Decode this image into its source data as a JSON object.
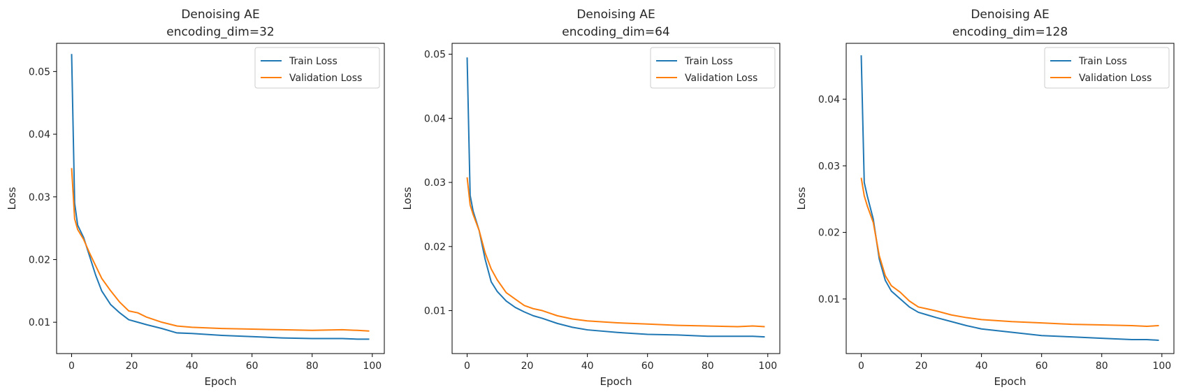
{
  "chart_data": [
    {
      "type": "line",
      "title": "Denoising AE",
      "subtitle": "encoding_dim=32",
      "xlabel": "Epoch",
      "ylabel": "Loss",
      "xlim": [
        -5,
        104
      ],
      "ylim": [
        0.005,
        0.0545
      ],
      "xticks": [
        0,
        20,
        40,
        60,
        80,
        100
      ],
      "xtick_labels": [
        "0",
        "20",
        "40",
        "60",
        "80",
        "100"
      ],
      "yticks": [
        0.01,
        0.02,
        0.03,
        0.04,
        0.05
      ],
      "ytick_labels": [
        "0.01",
        "0.02",
        "0.03",
        "0.04",
        "0.05"
      ],
      "grid": false,
      "legend_position": "top-right",
      "series": [
        {
          "name": "Train Loss",
          "color": "#1f77b4",
          "points": [
            [
              0,
              0.0528
            ],
            [
              1,
              0.029
            ],
            [
              2,
              0.0255
            ],
            [
              4,
              0.0235
            ],
            [
              6,
              0.0205
            ],
            [
              8,
              0.0175
            ],
            [
              10,
              0.015
            ],
            [
              13,
              0.0128
            ],
            [
              16,
              0.0115
            ],
            [
              19,
              0.0104
            ],
            [
              22,
              0.01
            ],
            [
              25,
              0.0096
            ],
            [
              30,
              0.009
            ],
            [
              35,
              0.0083
            ],
            [
              40,
              0.0082
            ],
            [
              50,
              0.0079
            ],
            [
              60,
              0.0077
            ],
            [
              70,
              0.0075
            ],
            [
              80,
              0.0074
            ],
            [
              90,
              0.0074
            ],
            [
              95,
              0.0073
            ],
            [
              99,
              0.0073
            ]
          ]
        },
        {
          "name": "Validation Loss",
          "color": "#ff7f0e",
          "points": [
            [
              0,
              0.0346
            ],
            [
              1,
              0.0265
            ],
            [
              2,
              0.0248
            ],
            [
              4,
              0.0232
            ],
            [
              6,
              0.021
            ],
            [
              8,
              0.019
            ],
            [
              10,
              0.017
            ],
            [
              13,
              0.015
            ],
            [
              16,
              0.0132
            ],
            [
              19,
              0.0118
            ],
            [
              22,
              0.0115
            ],
            [
              25,
              0.0108
            ],
            [
              30,
              0.01
            ],
            [
              35,
              0.0094
            ],
            [
              40,
              0.0092
            ],
            [
              50,
              0.009
            ],
            [
              60,
              0.0089
            ],
            [
              70,
              0.0088
            ],
            [
              80,
              0.0087
            ],
            [
              90,
              0.0088
            ],
            [
              95,
              0.0087
            ],
            [
              99,
              0.0086
            ]
          ]
        }
      ]
    },
    {
      "type": "line",
      "title": "Denoising AE",
      "subtitle": "encoding_dim=64",
      "xlabel": "Epoch",
      "ylabel": "Loss",
      "xlim": [
        -5,
        104
      ],
      "ylim": [
        0.0033,
        0.0517
      ],
      "xticks": [
        0,
        20,
        40,
        60,
        80,
        100
      ],
      "xtick_labels": [
        "0",
        "20",
        "40",
        "60",
        "80",
        "100"
      ],
      "yticks": [
        0.01,
        0.02,
        0.03,
        0.04,
        0.05
      ],
      "ytick_labels": [
        "0.01",
        "0.02",
        "0.03",
        "0.04",
        "0.05"
      ],
      "grid": false,
      "legend_position": "top-right",
      "series": [
        {
          "name": "Train Loss",
          "color": "#1f77b4",
          "points": [
            [
              0,
              0.0495
            ],
            [
              1,
              0.028
            ],
            [
              2,
              0.0255
            ],
            [
              4,
              0.0225
            ],
            [
              6,
              0.018
            ],
            [
              8,
              0.0145
            ],
            [
              10,
              0.013
            ],
            [
              13,
              0.0115
            ],
            [
              16,
              0.0105
            ],
            [
              19,
              0.0098
            ],
            [
              22,
              0.0092
            ],
            [
              25,
              0.0088
            ],
            [
              30,
              0.008
            ],
            [
              35,
              0.0074
            ],
            [
              40,
              0.007
            ],
            [
              50,
              0.0066
            ],
            [
              60,
              0.0063
            ],
            [
              70,
              0.0062
            ],
            [
              80,
              0.006
            ],
            [
              90,
              0.006
            ],
            [
              95,
              0.006
            ],
            [
              99,
              0.0059
            ]
          ]
        },
        {
          "name": "Validation Loss",
          "color": "#ff7f0e",
          "points": [
            [
              0,
              0.0308
            ],
            [
              1,
              0.0265
            ],
            [
              2,
              0.025
            ],
            [
              4,
              0.0225
            ],
            [
              6,
              0.019
            ],
            [
              8,
              0.0165
            ],
            [
              10,
              0.0148
            ],
            [
              13,
              0.0128
            ],
            [
              16,
              0.0118
            ],
            [
              19,
              0.0108
            ],
            [
              22,
              0.0103
            ],
            [
              25,
              0.01
            ],
            [
              30,
              0.0092
            ],
            [
              35,
              0.0087
            ],
            [
              40,
              0.0084
            ],
            [
              50,
              0.0081
            ],
            [
              60,
              0.0079
            ],
            [
              70,
              0.0077
            ],
            [
              80,
              0.0076
            ],
            [
              90,
              0.0075
            ],
            [
              95,
              0.0076
            ],
            [
              99,
              0.0075
            ]
          ]
        }
      ]
    },
    {
      "type": "line",
      "title": "Denoising AE",
      "subtitle": "encoding_dim=128",
      "xlabel": "Epoch",
      "ylabel": "Loss",
      "xlim": [
        -5,
        104
      ],
      "ylim": [
        0.0018,
        0.0484
      ],
      "xticks": [
        0,
        20,
        40,
        60,
        80,
        100
      ],
      "xtick_labels": [
        "0",
        "20",
        "40",
        "60",
        "80",
        "100"
      ],
      "yticks": [
        0.01,
        0.02,
        0.03,
        0.04
      ],
      "ytick_labels": [
        "0.01",
        "0.02",
        "0.03",
        "0.04"
      ],
      "grid": false,
      "legend_position": "top-right",
      "series": [
        {
          "name": "Train Loss",
          "color": "#1f77b4",
          "points": [
            [
              0,
              0.0466
            ],
            [
              1,
              0.0275
            ],
            [
              2,
              0.0255
            ],
            [
              4,
              0.022
            ],
            [
              6,
              0.016
            ],
            [
              8,
              0.0128
            ],
            [
              10,
              0.0112
            ],
            [
              13,
              0.01
            ],
            [
              16,
              0.0088
            ],
            [
              19,
              0.008
            ],
            [
              22,
              0.0076
            ],
            [
              25,
              0.0072
            ],
            [
              30,
              0.0066
            ],
            [
              35,
              0.006
            ],
            [
              40,
              0.0055
            ],
            [
              50,
              0.005
            ],
            [
              60,
              0.0045
            ],
            [
              70,
              0.0043
            ],
            [
              80,
              0.0041
            ],
            [
              90,
              0.0039
            ],
            [
              95,
              0.0039
            ],
            [
              99,
              0.0038
            ]
          ]
        },
        {
          "name": "Validation Loss",
          "color": "#ff7f0e",
          "points": [
            [
              0,
              0.0282
            ],
            [
              1,
              0.0255
            ],
            [
              2,
              0.024
            ],
            [
              4,
              0.0215
            ],
            [
              6,
              0.0165
            ],
            [
              8,
              0.0135
            ],
            [
              10,
              0.012
            ],
            [
              13,
              0.011
            ],
            [
              16,
              0.0097
            ],
            [
              19,
              0.0088
            ],
            [
              22,
              0.0085
            ],
            [
              25,
              0.0082
            ],
            [
              30,
              0.0076
            ],
            [
              35,
              0.0072
            ],
            [
              40,
              0.0069
            ],
            [
              50,
              0.0066
            ],
            [
              60,
              0.0064
            ],
            [
              70,
              0.0062
            ],
            [
              80,
              0.0061
            ],
            [
              90,
              0.006
            ],
            [
              95,
              0.0059
            ],
            [
              99,
              0.006
            ]
          ]
        }
      ]
    }
  ]
}
